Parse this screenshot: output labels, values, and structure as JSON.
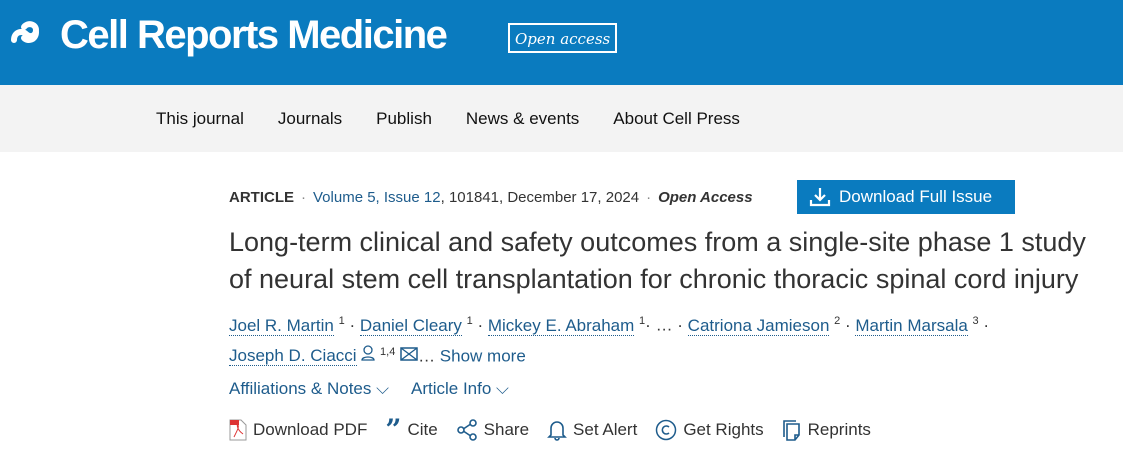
{
  "header": {
    "journal": "Cell Reports Medicine",
    "badge": "Open access",
    "brand_color": "#0a7bbf"
  },
  "nav": [
    "This journal",
    "Journals",
    "Publish",
    "News & events",
    "About Cell Press"
  ],
  "meta": {
    "type": "ARTICLE",
    "volume": "Volume 5, Issue 12",
    "article_no": "101841",
    "date": "December 17, 2024",
    "access": "Open Access",
    "download_issue": "Download Full Issue"
  },
  "title": "Long-term clinical and safety outcomes from a single-site phase 1 study of neural stem cell transplantation for chronic thoracic spinal cord injury",
  "authors": [
    {
      "name": "Joel R. Martin",
      "sup": "1"
    },
    {
      "name": "Daniel Cleary",
      "sup": "1"
    },
    {
      "name": "Mickey E. Abraham",
      "sup": "1"
    },
    {
      "name": "Catriona Jamieson",
      "sup": "2"
    },
    {
      "name": "Martin Marsala",
      "sup": "3"
    },
    {
      "name": "Joseph D. Ciacci",
      "sup": "1,4"
    }
  ],
  "ellipsis": "…",
  "show_more": "Show more",
  "toggles": {
    "affiliations": "Affiliations & Notes",
    "article_info": "Article Info"
  },
  "actions": {
    "pdf": "Download PDF",
    "cite": "Cite",
    "share": "Share",
    "alert": "Set Alert",
    "rights": "Get Rights",
    "reprints": "Reprints"
  }
}
